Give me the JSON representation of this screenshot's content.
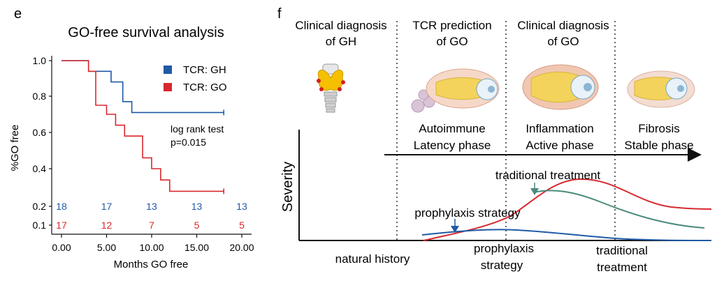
{
  "panel_e": {
    "letter": "e",
    "title": "GO-free survival analysis",
    "legend": [
      {
        "label": "TCR: GH",
        "color": "#1f5aa6"
      },
      {
        "label": "TCR: GO",
        "color": "#d8282e"
      }
    ],
    "annotation_line1": "log rank test",
    "annotation_line2": "p=0.015"
  },
  "panel_f": {
    "letter": "f",
    "stage_headers": [
      {
        "line1": "Clinical diagnosis",
        "line2": "of GH"
      },
      {
        "line1": "TCR prediction",
        "line2": "of GO"
      },
      {
        "line1": "Clinical diagnosis",
        "line2": "of GO"
      }
    ],
    "phases": [
      {
        "line1": "Autoimmune",
        "line2": "Latency phase"
      },
      {
        "line1": "Inflammation",
        "line2": "Active phase"
      },
      {
        "line1": "Fibrosis",
        "line2": "Stable phase"
      }
    ],
    "ylabel": "Severity",
    "curve_labels": {
      "traditional": "traditional treatment",
      "prophylaxis": "prophylaxis strategy"
    },
    "bottom_labels": [
      {
        "line1": "natural history",
        "line2": ""
      },
      {
        "line1": "prophylaxis",
        "line2": "strategy"
      },
      {
        "line1": "traditional",
        "line2": "treatment"
      }
    ],
    "colors": {
      "natural": "#d8282e",
      "traditional": "#4a8a7c",
      "prophylaxis": "#1f5aa6"
    }
  },
  "chart_data": [
    {
      "type": "line",
      "title": "GO-free survival analysis",
      "xlabel": "Months GO free",
      "ylabel": "%GO free",
      "xlim": [
        -1,
        20
      ],
      "ylim": [
        0.1,
        1.0
      ],
      "xticks": [
        "0.00",
        "5.00",
        "10.00",
        "15.00",
        "20.00"
      ],
      "yticks": [
        "0.1",
        "0.2",
        "0.4",
        "0.6",
        "0.8",
        "1.0"
      ],
      "step": true,
      "series": [
        {
          "name": "TCR: GH",
          "color": "#1f5aa6",
          "x": [
            0,
            3,
            5.5,
            6.8,
            7.8,
            18
          ],
          "y": [
            1.0,
            0.94,
            0.88,
            0.77,
            0.71,
            0.71
          ]
        },
        {
          "name": "TCR: GO",
          "color": "#d8282e",
          "x": [
            0,
            3,
            3.8,
            5,
            6,
            7,
            9,
            10,
            11,
            12,
            18
          ],
          "y": [
            1.0,
            0.94,
            0.75,
            0.7,
            0.64,
            0.58,
            0.46,
            0.4,
            0.34,
            0.28,
            0.28
          ]
        }
      ],
      "at_risk": [
        {
          "name": "TCR: GH",
          "color": "#1f5aa6",
          "x": [
            0,
            5,
            10,
            15,
            20
          ],
          "counts": [
            "18",
            "17",
            "13",
            "13",
            "13"
          ]
        },
        {
          "name": "TCR: GO",
          "color": "#d8282e",
          "x": [
            0,
            5,
            10,
            15,
            20
          ],
          "counts": [
            "17",
            "12",
            "7",
            "5",
            "5"
          ]
        }
      ]
    }
  ]
}
